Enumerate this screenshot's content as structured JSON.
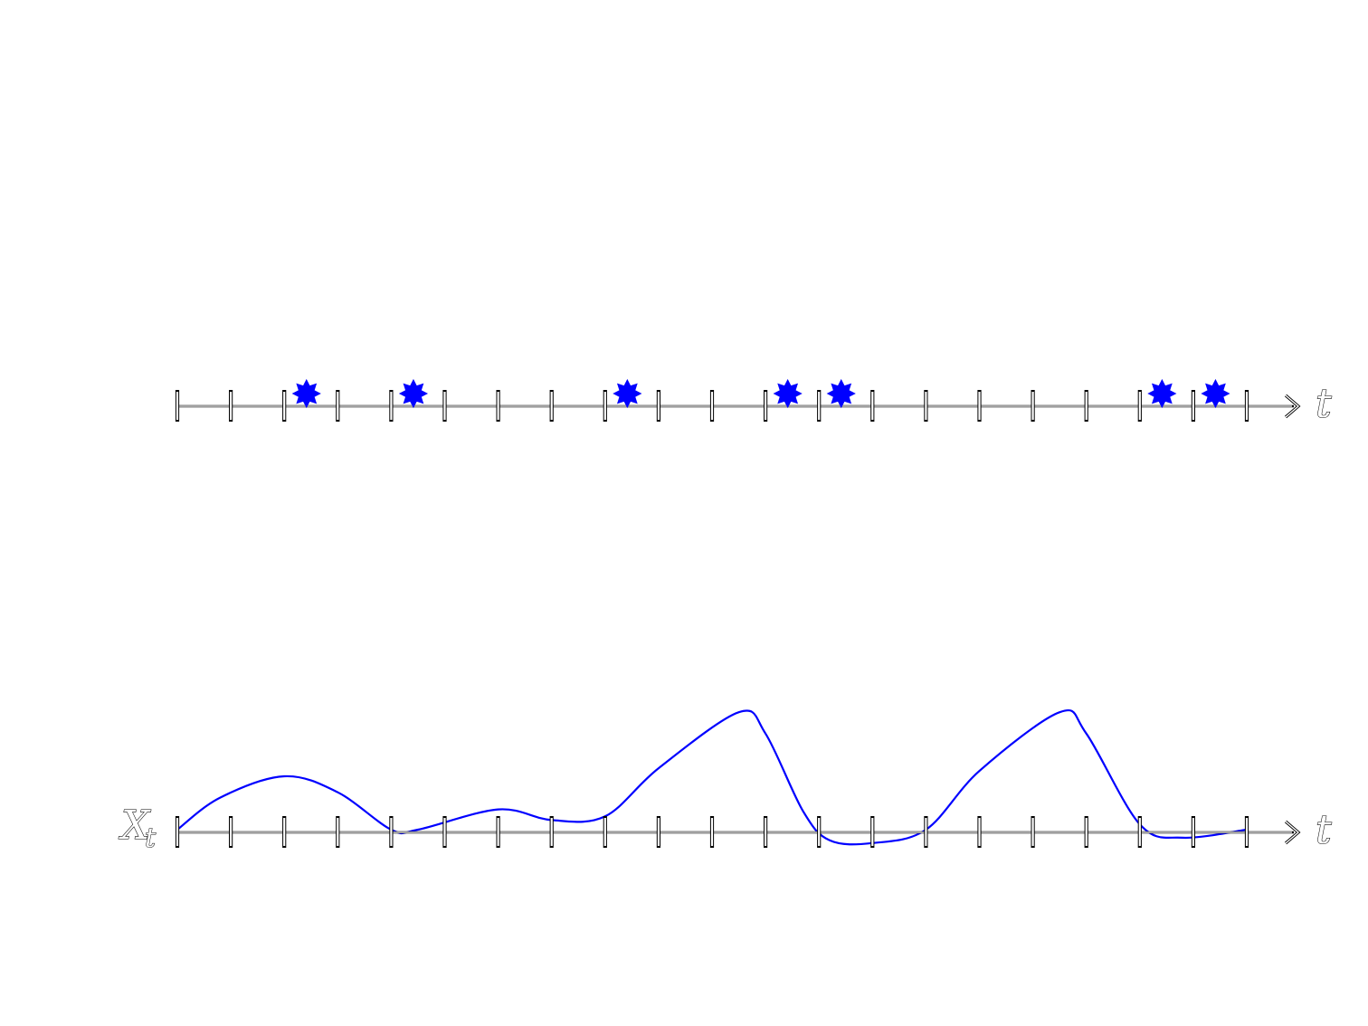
{
  "top_axis": {
    "label": "t"
  },
  "bottom_axis": {
    "label": "t",
    "y_label_main": "X",
    "y_label_sub": "t"
  },
  "chart_data": {
    "type": "diagram",
    "tick_count": 21,
    "event_positions": [
      2.5,
      4.5,
      8.5,
      11.5,
      12.5,
      18.5,
      19.5
    ],
    "signal_points": [
      [
        0.0,
        0.0
      ],
      [
        0.8,
        0.6
      ],
      [
        2.0,
        1.0
      ],
      [
        3.0,
        0.7
      ],
      [
        4.0,
        0.0
      ],
      [
        4.5,
        0.0
      ],
      [
        6.0,
        0.38
      ],
      [
        7.0,
        0.18
      ],
      [
        8.0,
        0.25
      ],
      [
        9.0,
        1.15
      ],
      [
        10.5,
        2.2
      ],
      [
        11.0,
        1.8
      ],
      [
        11.7,
        0.35
      ],
      [
        12.2,
        -0.2
      ],
      [
        13.0,
        -0.25
      ],
      [
        14.0,
        0.0
      ],
      [
        15.0,
        1.1
      ],
      [
        16.5,
        2.2
      ],
      [
        17.0,
        1.8
      ],
      [
        18.0,
        0.1
      ],
      [
        18.8,
        -0.15
      ],
      [
        20.0,
        0.0
      ]
    ],
    "colors": {
      "accent": "#0000ff",
      "axis": "#000000"
    }
  }
}
